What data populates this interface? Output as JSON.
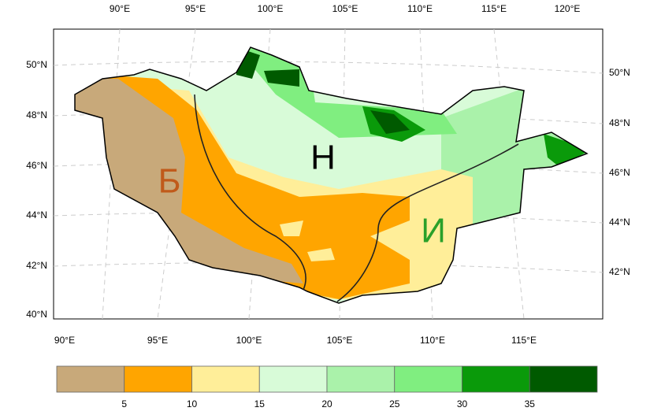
{
  "map": {
    "top_labels": [
      "90°E",
      "95°E",
      "100°E",
      "105°E",
      "110°E",
      "115°E",
      "120°E"
    ],
    "bottom_labels": [
      "90°E",
      "95°E",
      "100°E",
      "105°E",
      "110°E",
      "115°E"
    ],
    "left_labels": [
      "50°N",
      "48°N",
      "46°N",
      "44°N",
      "42°N",
      "40°N"
    ],
    "right_labels": [
      "50°N",
      "48°N",
      "46°N",
      "44°N",
      "42°N"
    ],
    "regions": [
      "Б",
      "Н",
      "И"
    ]
  },
  "colorbar": {
    "colors": [
      "#c8a97a",
      "#ffa500",
      "#ffee99",
      "#d8fbd8",
      "#aaf2aa",
      "#80ee80",
      "#0a9a0a",
      "#005a00"
    ],
    "labels": [
      5,
      10,
      15,
      20,
      25,
      30,
      35
    ]
  }
}
